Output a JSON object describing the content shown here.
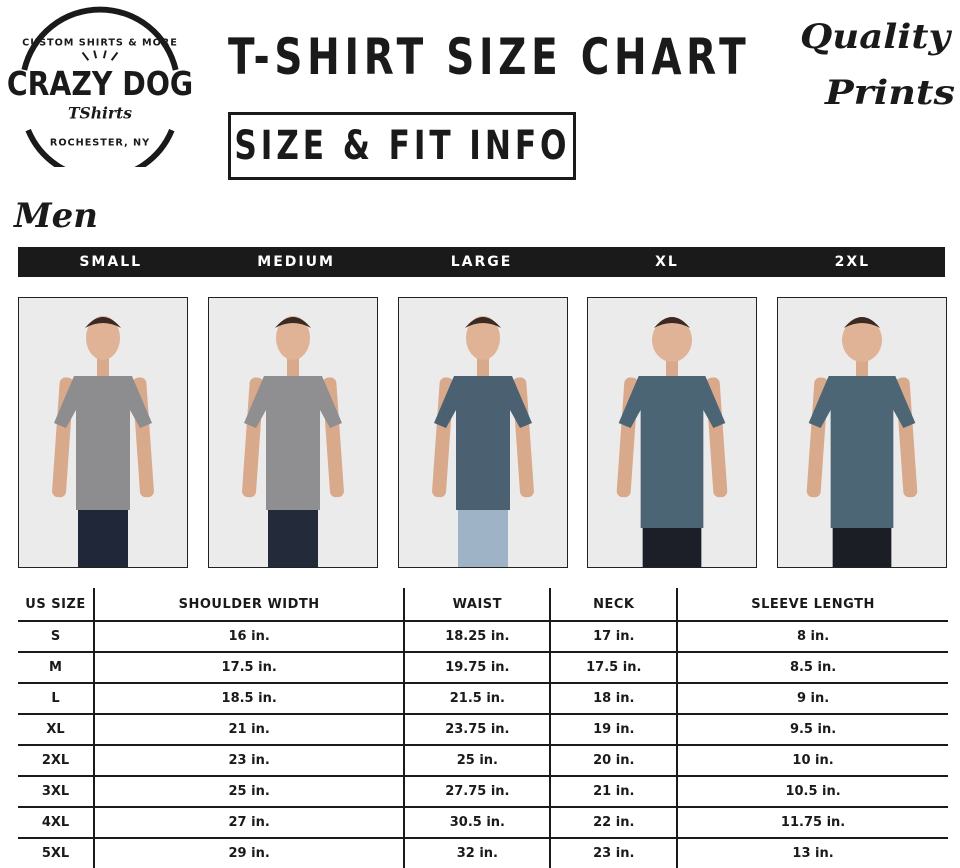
{
  "logo": {
    "top_text": "CUSTOM SHIRTS & MORE",
    "main": "CRAZY DOG",
    "sub": "TShirts",
    "bottom_text": "ROCHESTER, NY"
  },
  "header": {
    "title": "T-SHIRT SIZE CHART",
    "subtitle": "SIZE & FIT INFO"
  },
  "badge": {
    "line1": "Quality",
    "line2": "Prints"
  },
  "section": {
    "title": "Men"
  },
  "size_bar": [
    "SMALL",
    "MEDIUM",
    "LARGE",
    "XL",
    "2XL"
  ],
  "models": [
    {
      "size": "SMALL",
      "shirt_color": "#8d8c8e",
      "pants_color": "#1f2738"
    },
    {
      "size": "MEDIUM",
      "shirt_color": "#8f8e90",
      "pants_color": "#232a3a"
    },
    {
      "size": "LARGE",
      "shirt_color": "#4b6172",
      "pants_color": "#9fb3c6"
    },
    {
      "size": "XL",
      "shirt_color": "#4c6574",
      "pants_color": "#1c1f28"
    },
    {
      "size": "2XL",
      "shirt_color": "#4d6675",
      "pants_color": "#1c1e26"
    }
  ],
  "table": {
    "headers": [
      "US SIZE",
      "SHOULDER WIDTH",
      "WAIST",
      "NECK",
      "SLEEVE LENGTH"
    ],
    "rows": [
      [
        "S",
        "16 in.",
        "18.25 in.",
        "17 in.",
        "8 in."
      ],
      [
        "M",
        "17.5 in.",
        "19.75 in.",
        "17.5 in.",
        "8.5 in."
      ],
      [
        "L",
        "18.5 in.",
        "21.5 in.",
        "18 in.",
        "9 in."
      ],
      [
        "XL",
        "21 in.",
        "23.75 in.",
        "19 in.",
        "9.5 in."
      ],
      [
        "2XL",
        "23 in.",
        "25 in.",
        "20 in.",
        "10 in."
      ],
      [
        "3XL",
        "25 in.",
        "27.75 in.",
        "21 in.",
        "10.5 in."
      ],
      [
        "4XL",
        "27 in.",
        "30.5 in.",
        "22 in.",
        "11.75 in."
      ],
      [
        "5XL",
        "29 in.",
        "32 in.",
        "23 in.",
        "13 in."
      ]
    ]
  }
}
